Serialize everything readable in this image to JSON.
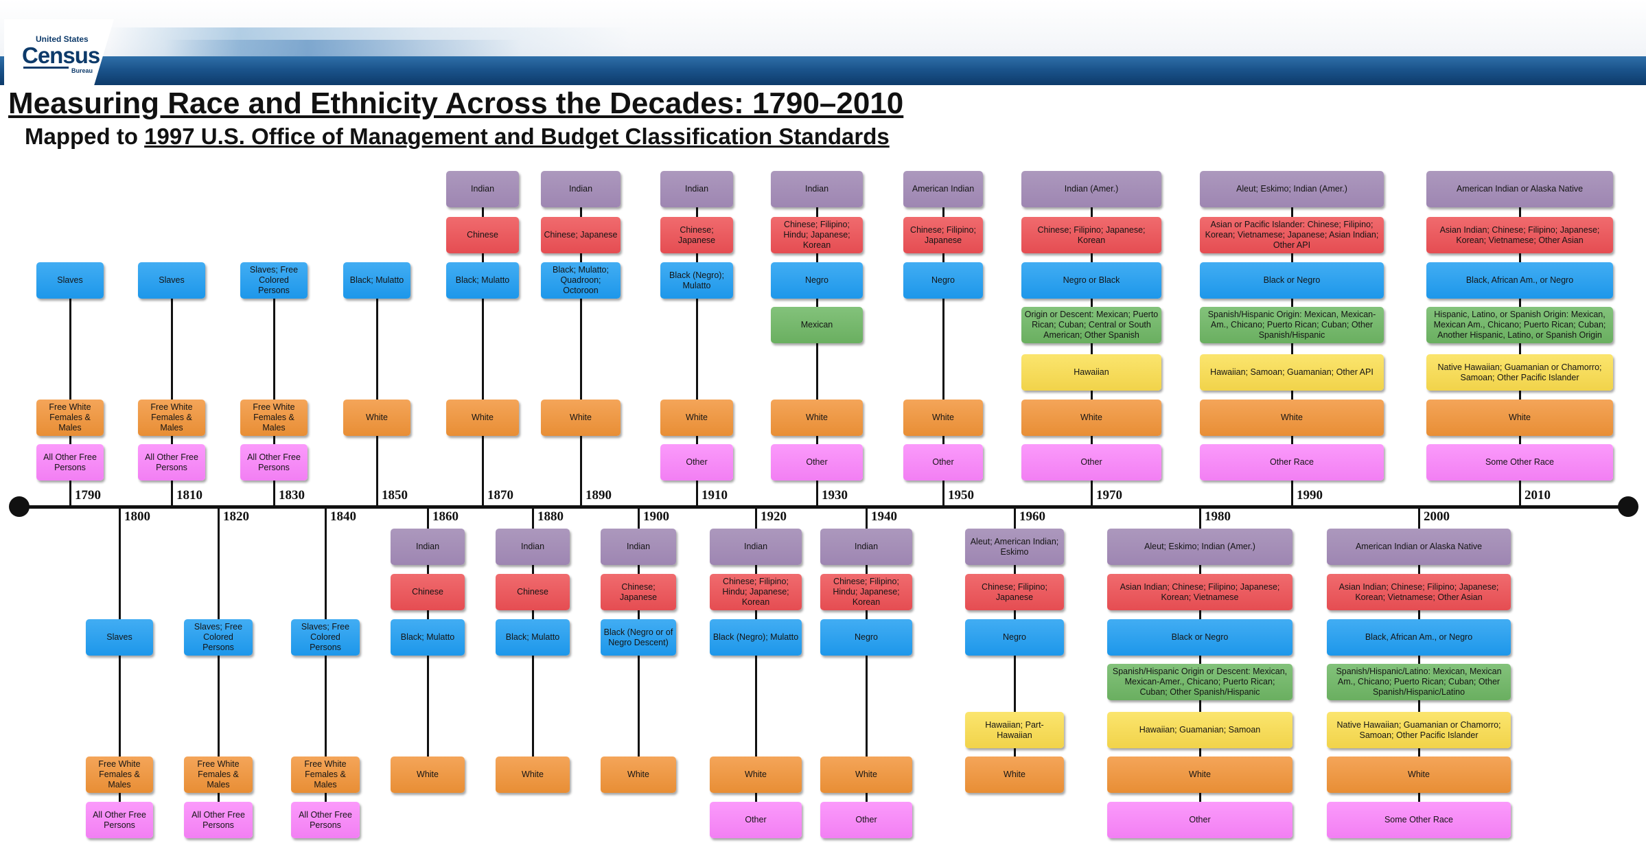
{
  "header": {
    "logo_top": "United States",
    "logo_main": "Census",
    "logo_bottom": "Bureau"
  },
  "title": "Measuring Race and Ethnicity Across the Decades: 1790–2010",
  "subtitle_prefix": "Mapped to ",
  "subtitle_link": "1997 U.S. Office of Management and Budget Classification Standards",
  "colors": {
    "purple": "#A08AB4",
    "red": "#E8545A",
    "blue": "#2A9DEE",
    "green": "#72B568",
    "yellow": "#F4D955",
    "orange": "#EB9440",
    "pink": "#F487F5"
  },
  "decades": [
    {
      "year": "1790",
      "side": "top",
      "boxes": [
        {
          "text": "Slaves",
          "color": "blue"
        },
        {
          "text": "Free White Females & Males",
          "color": "orange"
        },
        {
          "text": "All Other Free Persons",
          "color": "pink"
        }
      ]
    },
    {
      "year": "1800",
      "side": "bottom",
      "boxes": [
        {
          "text": "Slaves",
          "color": "blue"
        },
        {
          "text": "Free White Females & Males",
          "color": "orange"
        },
        {
          "text": "All Other Free Persons",
          "color": "pink"
        }
      ]
    },
    {
      "year": "1810",
      "side": "top",
      "boxes": [
        {
          "text": "Slaves",
          "color": "blue"
        },
        {
          "text": "Free White Females & Males",
          "color": "orange"
        },
        {
          "text": "All Other Free Persons",
          "color": "pink"
        }
      ]
    },
    {
      "year": "1820",
      "side": "bottom",
      "boxes": [
        {
          "text": "Slaves; Free Colored Persons",
          "color": "blue"
        },
        {
          "text": "Free White Females & Males",
          "color": "orange"
        },
        {
          "text": "All Other Free Persons",
          "color": "pink"
        }
      ]
    },
    {
      "year": "1830",
      "side": "top",
      "boxes": [
        {
          "text": "Slaves; Free Colored Persons",
          "color": "blue"
        },
        {
          "text": "Free White Females & Males",
          "color": "orange"
        },
        {
          "text": "All Other Free Persons",
          "color": "pink"
        }
      ]
    },
    {
      "year": "1840",
      "side": "bottom",
      "boxes": [
        {
          "text": "Slaves; Free Colored Persons",
          "color": "blue"
        },
        {
          "text": "Free White Females & Males",
          "color": "orange"
        },
        {
          "text": "All Other Free Persons",
          "color": "pink"
        }
      ]
    },
    {
      "year": "1850",
      "side": "top",
      "boxes": [
        {
          "text": "Black; Mulatto",
          "color": "blue"
        },
        {
          "text": "White",
          "color": "orange"
        }
      ]
    },
    {
      "year": "1860",
      "side": "bottom",
      "boxes": [
        {
          "text": "Indian",
          "color": "purple"
        },
        {
          "text": "Chinese",
          "color": "red"
        },
        {
          "text": "Black; Mulatto",
          "color": "blue"
        },
        {
          "text": "White",
          "color": "orange"
        }
      ]
    },
    {
      "year": "1870",
      "side": "top",
      "boxes": [
        {
          "text": "Indian",
          "color": "purple"
        },
        {
          "text": "Chinese",
          "color": "red"
        },
        {
          "text": "Black; Mulatto",
          "color": "blue"
        },
        {
          "text": "White",
          "color": "orange"
        }
      ]
    },
    {
      "year": "1880",
      "side": "bottom",
      "boxes": [
        {
          "text": "Indian",
          "color": "purple"
        },
        {
          "text": "Chinese",
          "color": "red"
        },
        {
          "text": "Black; Mulatto",
          "color": "blue"
        },
        {
          "text": "White",
          "color": "orange"
        }
      ]
    },
    {
      "year": "1890",
      "side": "top",
      "boxes": [
        {
          "text": "Indian",
          "color": "purple"
        },
        {
          "text": "Chinese; Japanese",
          "color": "red"
        },
        {
          "text": "Black; Mulatto; Quadroon; Octoroon",
          "color": "blue"
        },
        {
          "text": "White",
          "color": "orange"
        }
      ]
    },
    {
      "year": "1900",
      "side": "bottom",
      "boxes": [
        {
          "text": "Indian",
          "color": "purple"
        },
        {
          "text": "Chinese; Japanese",
          "color": "red"
        },
        {
          "text": "Black (Negro or of Negro Descent)",
          "color": "blue"
        },
        {
          "text": "White",
          "color": "orange"
        }
      ]
    },
    {
      "year": "1910",
      "side": "top",
      "boxes": [
        {
          "text": "Indian",
          "color": "purple"
        },
        {
          "text": "Chinese; Japanese",
          "color": "red"
        },
        {
          "text": "Black (Negro); Mulatto",
          "color": "blue"
        },
        {
          "text": "White",
          "color": "orange"
        },
        {
          "text": "Other",
          "color": "pink"
        }
      ]
    },
    {
      "year": "1920",
      "side": "bottom",
      "boxes": [
        {
          "text": "Indian",
          "color": "purple"
        },
        {
          "text": "Chinese; Filipino; Hindu; Japanese; Korean",
          "color": "red"
        },
        {
          "text": "Black (Negro); Mulatto",
          "color": "blue"
        },
        {
          "text": "White",
          "color": "orange"
        },
        {
          "text": "Other",
          "color": "pink"
        }
      ]
    },
    {
      "year": "1930",
      "side": "top",
      "boxes": [
        {
          "text": "Indian",
          "color": "purple"
        },
        {
          "text": "Chinese; Filipino; Hindu; Japanese; Korean",
          "color": "red"
        },
        {
          "text": "Negro",
          "color": "blue"
        },
        {
          "text": "Mexican",
          "color": "green"
        },
        {
          "text": "White",
          "color": "orange"
        },
        {
          "text": "Other",
          "color": "pink"
        }
      ]
    },
    {
      "year": "1940",
      "side": "bottom",
      "boxes": [
        {
          "text": "Indian",
          "color": "purple"
        },
        {
          "text": "Chinese; Filipino; Hindu; Japanese; Korean",
          "color": "red"
        },
        {
          "text": "Negro",
          "color": "blue"
        },
        {
          "text": "White",
          "color": "orange"
        },
        {
          "text": "Other",
          "color": "pink"
        }
      ]
    },
    {
      "year": "1950",
      "side": "top",
      "boxes": [
        {
          "text": "American Indian",
          "color": "purple"
        },
        {
          "text": "Chinese; Filipino; Japanese",
          "color": "red"
        },
        {
          "text": "Negro",
          "color": "blue"
        },
        {
          "text": "White",
          "color": "orange"
        },
        {
          "text": "Other",
          "color": "pink"
        }
      ]
    },
    {
      "year": "1960",
      "side": "bottom",
      "boxes": [
        {
          "text": "Aleut; American Indian; Eskimo",
          "color": "purple"
        },
        {
          "text": "Chinese; Filipino; Japanese",
          "color": "red"
        },
        {
          "text": "Negro",
          "color": "blue"
        },
        {
          "text": "Hawaiian; Part-Hawaiian",
          "color": "yellow"
        },
        {
          "text": "White",
          "color": "orange"
        }
      ]
    },
    {
      "year": "1970",
      "side": "top",
      "boxes": [
        {
          "text": "Indian (Amer.)",
          "color": "purple"
        },
        {
          "text": "Chinese; Filipino; Japanese; Korean",
          "color": "red"
        },
        {
          "text": "Negro or Black",
          "color": "blue"
        },
        {
          "text": "Origin or Descent: Mexican; Puerto Rican; Cuban; Central or South American; Other Spanish",
          "color": "green"
        },
        {
          "text": "Hawaiian",
          "color": "yellow"
        },
        {
          "text": "White",
          "color": "orange"
        },
        {
          "text": "Other",
          "color": "pink"
        }
      ]
    },
    {
      "year": "1980",
      "side": "bottom",
      "boxes": [
        {
          "text": "Aleut; Eskimo; Indian (Amer.)",
          "color": "purple"
        },
        {
          "text": "Asian Indian; Chinese; Filipino; Japanese; Korean; Vietnamese",
          "color": "red"
        },
        {
          "text": "Black or Negro",
          "color": "blue"
        },
        {
          "text": "Spanish/Hispanic Origin or Descent: Mexican, Mexican-Amer., Chicano; Puerto Rican; Cuban; Other Spanish/Hispanic",
          "color": "green"
        },
        {
          "text": "Hawaiian; Guamanian; Samoan",
          "color": "yellow"
        },
        {
          "text": "White",
          "color": "orange"
        },
        {
          "text": "Other",
          "color": "pink"
        }
      ]
    },
    {
      "year": "1990",
      "side": "top",
      "boxes": [
        {
          "text": "Aleut; Eskimo; Indian (Amer.)",
          "color": "purple"
        },
        {
          "text": "Asian or Pacific Islander: Chinese; Filipino; Korean; Vietnamese; Japanese; Asian Indian; Other API",
          "color": "red"
        },
        {
          "text": "Black or Negro",
          "color": "blue"
        },
        {
          "text": "Spanish/Hispanic Origin: Mexican, Mexican-Am., Chicano; Puerto Rican; Cuban; Other Spanish/Hispanic",
          "color": "green"
        },
        {
          "text": "Hawaiian; Samoan; Guamanian; Other API",
          "color": "yellow"
        },
        {
          "text": "White",
          "color": "orange"
        },
        {
          "text": "Other Race",
          "color": "pink"
        }
      ]
    },
    {
      "year": "2000",
      "side": "bottom",
      "boxes": [
        {
          "text": "American Indian or Alaska Native",
          "color": "purple"
        },
        {
          "text": "Asian Indian; Chinese; Filipino; Japanese; Korean; Vietnamese; Other Asian",
          "color": "red"
        },
        {
          "text": "Black, African Am., or Negro",
          "color": "blue"
        },
        {
          "text": "Spanish/Hispanic/Latino: Mexican, Mexican Am., Chicano; Puerto Rican; Cuban; Other Spanish/Hispanic/Latino",
          "color": "green"
        },
        {
          "text": "Native Hawaiian; Guamanian or Chamorro; Samoan; Other Pacific Islander",
          "color": "yellow"
        },
        {
          "text": "White",
          "color": "orange"
        },
        {
          "text": "Some Other Race",
          "color": "pink"
        }
      ]
    },
    {
      "year": "2010",
      "side": "top",
      "boxes": [
        {
          "text": "American Indian or Alaska Native",
          "color": "purple"
        },
        {
          "text": "Asian Indian; Chinese; Filipino; Japanese; Korean; Vietnamese; Other Asian",
          "color": "red"
        },
        {
          "text": "Black, African Am., or Negro",
          "color": "blue"
        },
        {
          "text": "Hispanic, Latino, or Spanish Origin: Mexican, Mexican Am., Chicano; Puerto Rican; Cuban; Another Hispanic, Latino, or Spanish Origin",
          "color": "green"
        },
        {
          "text": "Native Hawaiian; Guamanian or Chamorro; Samoan; Other Pacific Islander",
          "color": "yellow"
        },
        {
          "text": "White",
          "color": "orange"
        },
        {
          "text": "Some Other Race",
          "color": "pink"
        }
      ]
    }
  ]
}
